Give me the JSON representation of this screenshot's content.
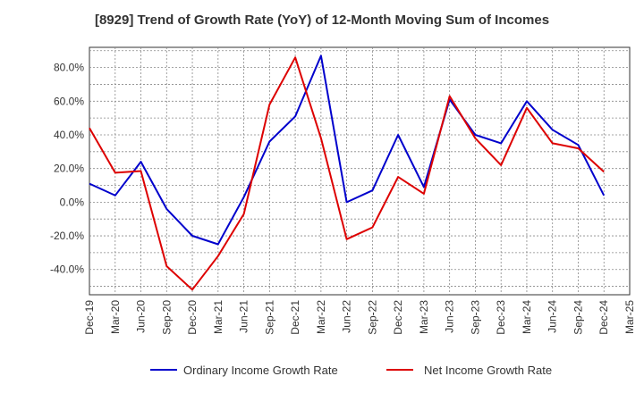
{
  "chart_data": {
    "type": "line",
    "title": "[8929]  Trend of Growth Rate (YoY) of 12-Month Moving Sum of Incomes",
    "xlabel": "",
    "ylabel": "",
    "x": [
      "Dec-19",
      "Mar-20",
      "Jun-20",
      "Sep-20",
      "Dec-20",
      "Mar-21",
      "Jun-21",
      "Sep-21",
      "Dec-21",
      "Mar-22",
      "Jun-22",
      "Sep-22",
      "Dec-22",
      "Mar-23",
      "Jun-23",
      "Sep-23",
      "Dec-23",
      "Mar-24",
      "Jun-24",
      "Sep-24",
      "Dec-24",
      "Mar-25"
    ],
    "ylim": [
      -55,
      92
    ],
    "yticks": [
      -40,
      -20,
      0,
      20,
      40,
      60,
      80
    ],
    "ytick_labels": [
      "-40.0%",
      "-20.0%",
      "0.0%",
      "20.0%",
      "40.0%",
      "60.0%",
      "80.0%"
    ],
    "grid": true,
    "legend_position": "bottom",
    "series": [
      {
        "name": "Ordinary Income Growth Rate",
        "color": "#0000cc",
        "values": [
          11,
          4,
          24,
          -4,
          -20,
          -25,
          3,
          36,
          51,
          87,
          0,
          7,
          40,
          9,
          61,
          40,
          35,
          60,
          43,
          34,
          4,
          null
        ]
      },
      {
        "name": "Net Income Growth Rate",
        "color": "#dd0000",
        "values": [
          44,
          17.5,
          18.5,
          -38,
          -52,
          -32,
          -7,
          58,
          86,
          38,
          -22,
          -15,
          15,
          5,
          63,
          38,
          22,
          56,
          35,
          32,
          18,
          null
        ]
      }
    ]
  }
}
